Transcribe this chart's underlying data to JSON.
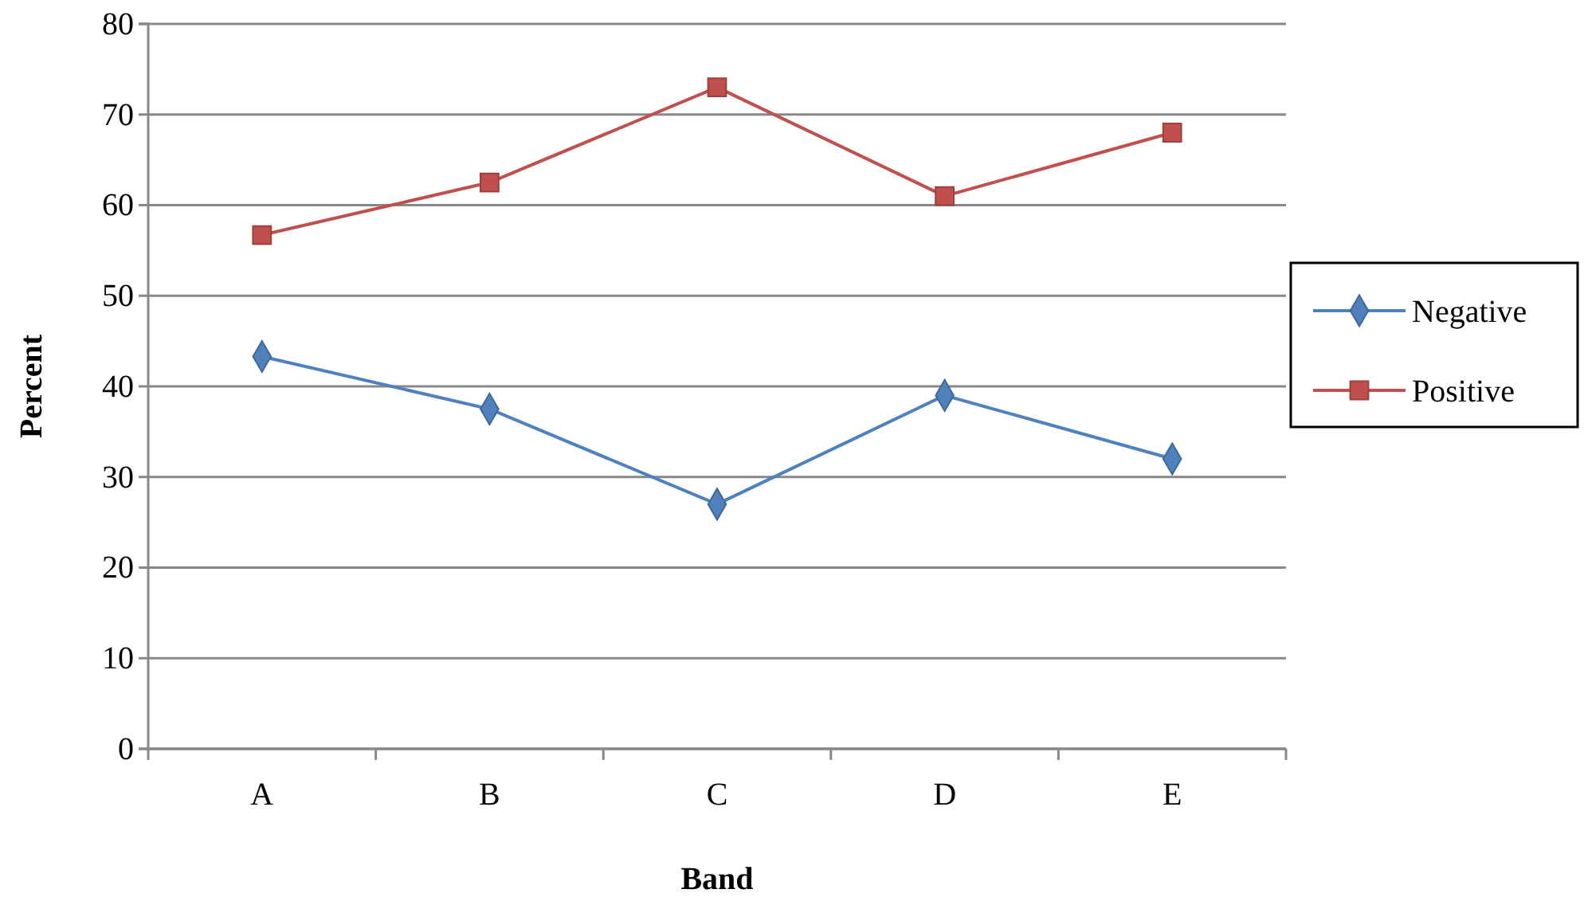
{
  "chart_data": {
    "type": "line",
    "xlabel": "Band",
    "ylabel": "Percent",
    "categories": [
      "A",
      "B",
      "C",
      "D",
      "E"
    ],
    "series": [
      {
        "name": "Negative",
        "color": "#4f81bd",
        "marker": "diamond",
        "values": [
          43.3,
          37.5,
          27,
          39,
          32
        ]
      },
      {
        "name": "Positive",
        "color": "#c0504d",
        "marker": "square",
        "values": [
          56.7,
          62.5,
          73,
          61,
          68
        ]
      }
    ],
    "ylim": [
      0,
      80
    ],
    "yticks": [
      0,
      10,
      20,
      30,
      40,
      50,
      60,
      70,
      80
    ],
    "grid": "y",
    "legend": "right"
  }
}
